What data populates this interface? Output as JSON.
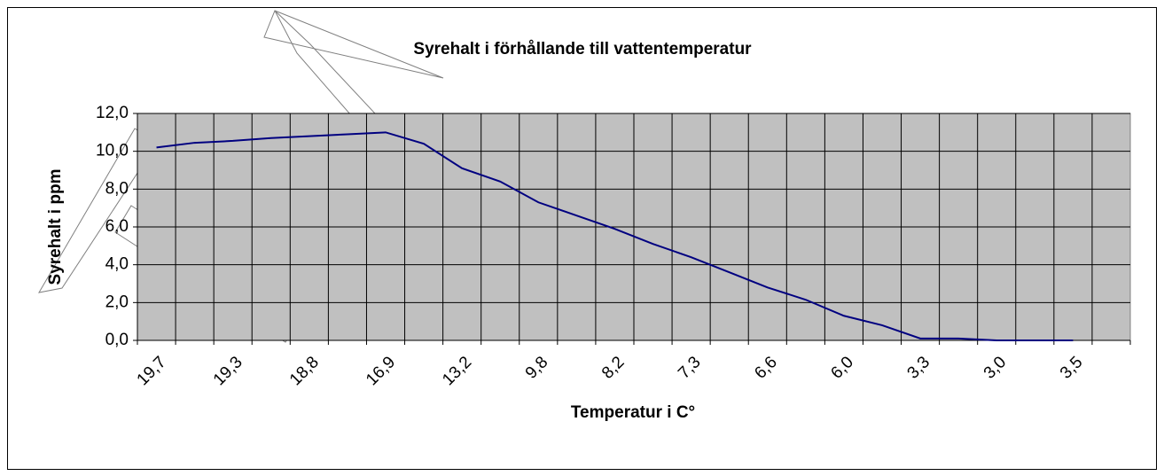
{
  "chart_data": {
    "type": "line",
    "title": "Syrehalt i förhållande till vattentemperatur",
    "x_label": "Temperatur i C°",
    "y_label": "Syrehalt i ppm",
    "categories": [
      "19,7",
      null,
      "19,3",
      null,
      "18,8",
      null,
      "16,9",
      null,
      "13,2",
      null,
      "9,8",
      null,
      "8,2",
      null,
      "7,3",
      null,
      "6,6",
      null,
      "6,0",
      null,
      "3,3",
      null,
      "3,0",
      null,
      "3,5",
      null
    ],
    "series": [
      {
        "name": "Syrehalt",
        "color": "#000080",
        "values": [
          10.2,
          10.45,
          10.55,
          10.7,
          10.8,
          10.9,
          11.0,
          10.4,
          9.1,
          8.4,
          7.3,
          6.6,
          5.9,
          5.1,
          4.4,
          3.6,
          2.8,
          2.15,
          1.3,
          0.8,
          0.1,
          0.1,
          0,
          0,
          0,
          null
        ]
      }
    ],
    "ylim": [
      0,
      12
    ],
    "yticks": [
      {
        "value": 0,
        "label": "0,0"
      },
      {
        "value": 2,
        "label": "2,0"
      },
      {
        "value": 4,
        "label": "4,0"
      },
      {
        "value": 6,
        "label": "6,0"
      },
      {
        "value": 8,
        "label": "8,0"
      },
      {
        "value": 10,
        "label": "10,0"
      },
      {
        "value": 12,
        "label": "12,0"
      }
    ],
    "grid": true,
    "plot_background": "#c0c0c0"
  }
}
